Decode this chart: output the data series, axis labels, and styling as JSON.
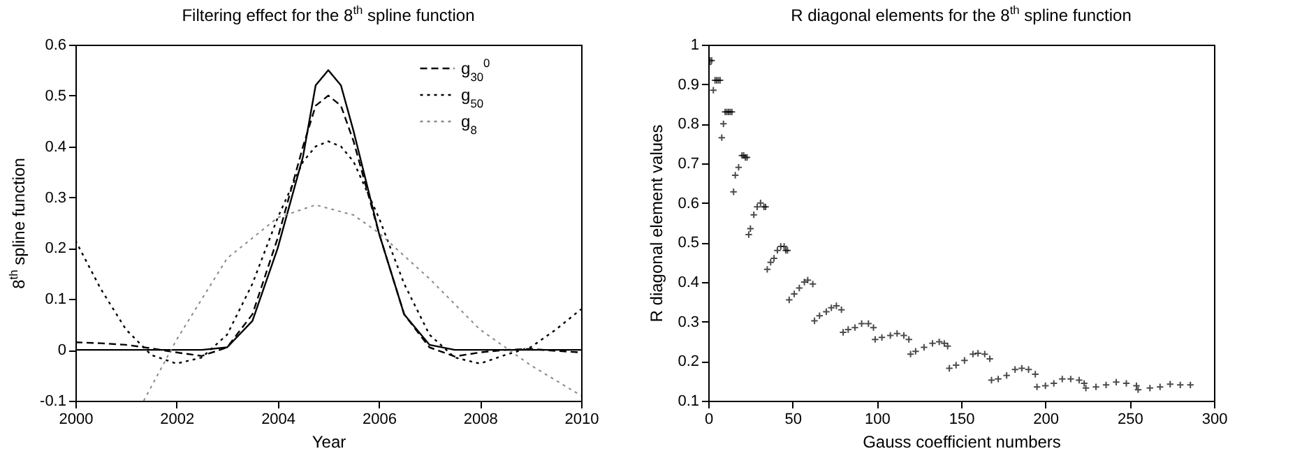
{
  "chart_data": [
    {
      "type": "line",
      "title": "Filtering effect for the 8$^{th}$ spline function",
      "xlabel": "Year",
      "ylabel": "8$^{th}$ spline function",
      "x": [
        2000,
        2000.5,
        2001,
        2001.5,
        2002,
        2002.5,
        2003,
        2003.5,
        2004,
        2004.5,
        2004.75,
        2005,
        2005.25,
        2005.5,
        2006,
        2006.5,
        2007,
        2007.5,
        2008,
        2008.5,
        2009,
        2009.5,
        2010
      ],
      "series": [
        {
          "color": "#000000",
          "line_style": "solid",
          "values": [
            0,
            0,
            0,
            0,
            0,
            0,
            0.005,
            0.057,
            0.2,
            0.38,
            0.52,
            0.55,
            0.52,
            0.43,
            0.23,
            0.07,
            0.01,
            0,
            0,
            0,
            0,
            0,
            0
          ]
        },
        {
          "name": "g$_{30}$$^{0}$",
          "color": "#000000",
          "line_style": "dashed",
          "values": [
            0.015,
            0.013,
            0.01,
            0.003,
            -0.005,
            -0.012,
            0.005,
            0.07,
            0.22,
            0.4,
            0.48,
            0.5,
            0.48,
            0.41,
            0.23,
            0.07,
            0.005,
            -0.013,
            -0.005,
            0,
            0.002,
            -0.002,
            -0.005
          ]
        },
        {
          "name": "g$_{50}$",
          "color": "#000000",
          "line_style": "dotted",
          "values": [
            0.215,
            0.12,
            0.04,
            -0.01,
            -0.027,
            -0.015,
            0.03,
            0.13,
            0.26,
            0.37,
            0.4,
            0.41,
            0.4,
            0.37,
            0.26,
            0.13,
            0.03,
            -0.015,
            -0.027,
            -0.01,
            0.005,
            0.04,
            0.08
          ]
        },
        {
          "name": "g$_{8}$",
          "color": "#888888",
          "line_style": "dotted",
          "x": [
            2001.35,
            2002,
            2003,
            2004,
            2004.75,
            2005.5,
            2006,
            2007,
            2008,
            2009,
            2010
          ],
          "values": [
            -0.1,
            0.02,
            0.18,
            0.26,
            0.285,
            0.265,
            0.23,
            0.14,
            0.04,
            -0.03,
            -0.09
          ]
        }
      ],
      "xlim": [
        2000,
        2010
      ],
      "xticks": [
        2000,
        2002,
        2004,
        2006,
        2008,
        2010
      ],
      "ylim": [
        -0.1,
        0.6
      ],
      "yticks": [
        -0.1,
        0,
        0.1,
        0.2,
        0.3,
        0.4,
        0.5,
        0.6
      ],
      "legend": "top right"
    },
    {
      "type": "scatter",
      "title": "R diagonal elements for the 8$^{th}$ spline function",
      "xlabel": "Gauss coefficient numbers",
      "ylabel": "R diagonal element values",
      "marker": "cross",
      "x": [
        0,
        1,
        2,
        3,
        4,
        5,
        6,
        7,
        8,
        9,
        10,
        11,
        12,
        13,
        14,
        15,
        16,
        18,
        20,
        21,
        22,
        23,
        24,
        25,
        27,
        29,
        31,
        33,
        34,
        35,
        37,
        39,
        41,
        43,
        45,
        46,
        47,
        48,
        51,
        54,
        57,
        59,
        62,
        63,
        66,
        70,
        73,
        76,
        79,
        80,
        83,
        87,
        91,
        95,
        98,
        99,
        103,
        108,
        112,
        116,
        119,
        120,
        123,
        128,
        133,
        137,
        140,
        142,
        143,
        147,
        152,
        157,
        160,
        164,
        167,
        168,
        172,
        177,
        182,
        186,
        190,
        194,
        195,
        200,
        205,
        210,
        215,
        220,
        223,
        224,
        230,
        236,
        242,
        248,
        254,
        255,
        262,
        268,
        274,
        280,
        286
      ],
      "series": [
        {
          "color": "#000000",
          "values": [
            0.95,
            0.96,
            0.96,
            0.885,
            0.91,
            0.91,
            0.91,
            0.91,
            0.765,
            0.8,
            0.83,
            0.83,
            0.83,
            0.83,
            0.83,
            0.628,
            0.67,
            0.69,
            0.72,
            0.72,
            0.715,
            0.715,
            0.52,
            0.535,
            0.57,
            0.59,
            0.6,
            0.59,
            0.59,
            0.432,
            0.45,
            0.46,
            0.48,
            0.49,
            0.49,
            0.48,
            0.48,
            0.355,
            0.37,
            0.385,
            0.4,
            0.405,
            0.395,
            0.302,
            0.315,
            0.325,
            0.335,
            0.34,
            0.33,
            0.273,
            0.28,
            0.285,
            0.295,
            0.295,
            0.285,
            0.255,
            0.26,
            0.265,
            0.27,
            0.265,
            0.255,
            0.218,
            0.225,
            0.235,
            0.245,
            0.249,
            0.245,
            0.238,
            0.182,
            0.19,
            0.202,
            0.218,
            0.22,
            0.218,
            0.206,
            0.152,
            0.155,
            0.164,
            0.179,
            0.182,
            0.179,
            0.167,
            0.135,
            0.138,
            0.144,
            0.155,
            0.155,
            0.152,
            0.144,
            0.132,
            0.135,
            0.14,
            0.147,
            0.144,
            0.138,
            0.128,
            0.132,
            0.135,
            0.142,
            0.14,
            0.14
          ]
        }
      ],
      "xlim": [
        0,
        300
      ],
      "xticks": [
        0,
        50,
        100,
        150,
        200,
        250,
        300
      ],
      "ylim": [
        0.1,
        1
      ],
      "yticks": [
        0.1,
        0.2,
        0.3,
        0.4,
        0.5,
        0.6,
        0.7,
        0.8,
        0.9,
        1
      ]
    }
  ]
}
